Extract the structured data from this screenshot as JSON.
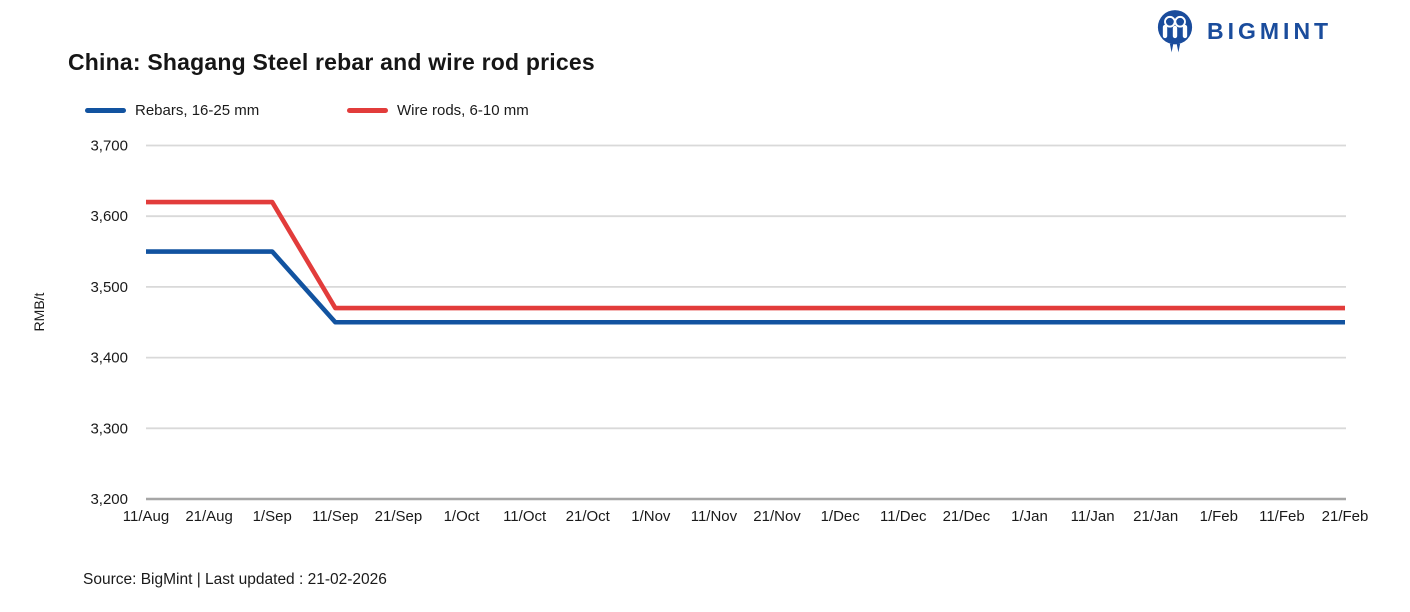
{
  "logo": {
    "text": "BIGMINT",
    "color": "#1a4c9c"
  },
  "title": "China: Shagang Steel rebar and wire rod prices",
  "source_note": "Source: BigMint | Last updated : 21-02-2026",
  "colors": {
    "rebar_line": "#1253a0",
    "wire_rod_line": "#e23c3b",
    "gridline": "#d9d9d9",
    "axis_line": "#a6a6a6",
    "label_text": "#1a1a1a"
  },
  "chart_data": {
    "type": "line",
    "title": "China: Shagang Steel rebar and wire rod prices",
    "xlabel": "",
    "ylabel": "RMB/t",
    "ylim": [
      3200,
      3700
    ],
    "yticks": [
      3200,
      3300,
      3400,
      3500,
      3600,
      3700
    ],
    "grid": true,
    "legend_position": "top-left",
    "categories": [
      "11/Aug",
      "21/Aug",
      "1/Sep",
      "11/Sep",
      "21/Sep",
      "1/Oct",
      "11/Oct",
      "21/Oct",
      "1/Nov",
      "11/Nov",
      "21/Nov",
      "1/Dec",
      "11/Dec",
      "21/Dec",
      "1/Jan",
      "11/Jan",
      "21/Jan",
      "1/Feb",
      "11/Feb",
      "21/Feb"
    ],
    "series": [
      {
        "name": "Rebars, 16-25 mm",
        "color": "#1253a0",
        "values": [
          3550,
          3550,
          3550,
          3450,
          3450,
          3450,
          3450,
          3450,
          3450,
          3450,
          3450,
          3450,
          3450,
          3450,
          3450,
          3450,
          3450,
          3450,
          3450,
          3450
        ]
      },
      {
        "name": "Wire rods, 6-10 mm",
        "color": "#e23c3b",
        "values": [
          3620,
          3620,
          3620,
          3470,
          3470,
          3470,
          3470,
          3470,
          3470,
          3470,
          3470,
          3470,
          3470,
          3470,
          3470,
          3470,
          3470,
          3470,
          3470,
          3470
        ]
      }
    ]
  }
}
